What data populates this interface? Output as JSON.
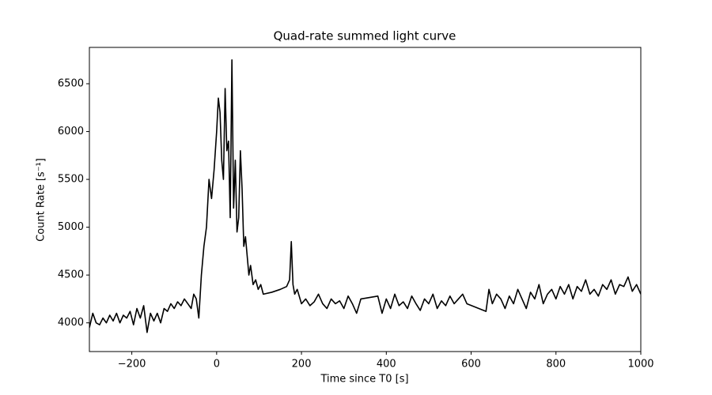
{
  "chart_data": {
    "type": "line",
    "title": "Quad-rate summed light curve",
    "xlabel": "Time since T0 [s]",
    "ylabel": "Count Rate [s⁻¹]",
    "x": [
      -300,
      -292,
      -284,
      -276,
      -268,
      -260,
      -252,
      -244,
      -236,
      -228,
      -220,
      -212,
      -204,
      -196,
      -188,
      -180,
      -172,
      -164,
      -156,
      -148,
      -140,
      -132,
      -124,
      -116,
      -108,
      -100,
      -92,
      -84,
      -76,
      -68,
      -60,
      -54,
      -48,
      -42,
      -36,
      -30,
      -24,
      -18,
      -12,
      -6,
      0,
      4,
      8,
      12,
      16,
      20,
      24,
      28,
      32,
      36,
      40,
      44,
      48,
      52,
      56,
      60,
      64,
      68,
      72,
      76,
      80,
      86,
      92,
      98,
      104,
      110,
      130,
      150,
      165,
      172,
      176,
      180,
      184,
      190,
      200,
      210,
      220,
      230,
      240,
      250,
      260,
      270,
      280,
      290,
      300,
      310,
      320,
      330,
      340,
      380,
      390,
      400,
      410,
      420,
      430,
      440,
      450,
      460,
      470,
      480,
      490,
      500,
      510,
      520,
      530,
      540,
      550,
      560,
      570,
      580,
      590,
      635,
      642,
      650,
      660,
      670,
      680,
      690,
      700,
      710,
      720,
      730,
      740,
      750,
      760,
      770,
      780,
      790,
      800,
      810,
      820,
      830,
      840,
      850,
      860,
      870,
      880,
      890,
      900,
      910,
      920,
      930,
      940,
      950,
      960,
      970,
      980,
      990,
      1000
    ],
    "series": [
      {
        "name": "Quad-rate",
        "color": "#000000",
        "values": [
          3950,
          4100,
          4000,
          3980,
          4050,
          4000,
          4080,
          4020,
          4100,
          4000,
          4080,
          4050,
          4120,
          3980,
          4150,
          4050,
          4180,
          3900,
          4100,
          4020,
          4100,
          4000,
          4150,
          4120,
          4200,
          4150,
          4220,
          4180,
          4250,
          4200,
          4150,
          4300,
          4250,
          4050,
          4500,
          4800,
          5000,
          5500,
          5300,
          5600,
          6000,
          6350,
          6200,
          5700,
          5500,
          6450,
          5800,
          5900,
          5100,
          6750,
          5200,
          5700,
          4950,
          5100,
          5800,
          5400,
          4800,
          4900,
          4700,
          4500,
          4600,
          4400,
          4450,
          4350,
          4400,
          4300,
          4320,
          4350,
          4380,
          4450,
          4850,
          4400,
          4300,
          4350,
          4200,
          4250,
          4180,
          4220,
          4300,
          4200,
          4150,
          4250,
          4200,
          4230,
          4150,
          4280,
          4200,
          4100,
          4250,
          4280,
          4100,
          4250,
          4150,
          4300,
          4180,
          4220,
          4150,
          4280,
          4200,
          4130,
          4250,
          4200,
          4300,
          4150,
          4230,
          4180,
          4280,
          4200,
          4250,
          4300,
          4200,
          4120,
          4350,
          4200,
          4300,
          4250,
          4150,
          4280,
          4200,
          4350,
          4250,
          4150,
          4320,
          4250,
          4400,
          4200,
          4300,
          4350,
          4250,
          4380,
          4300,
          4400,
          4250,
          4380,
          4330,
          4450,
          4300,
          4350,
          4280,
          4400,
          4350,
          4450,
          4300,
          4400,
          4380,
          4480,
          4330,
          4400,
          4300
        ]
      }
    ],
    "xlim": [
      -300,
      1000
    ],
    "xticks": [
      {
        "value": -200,
        "label": "−200"
      },
      0,
      200,
      400,
      600,
      800,
      1000
    ],
    "ylim": [
      3700,
      6880
    ],
    "yticks": [
      4000,
      4500,
      5000,
      5500,
      6000,
      6500
    ]
  }
}
